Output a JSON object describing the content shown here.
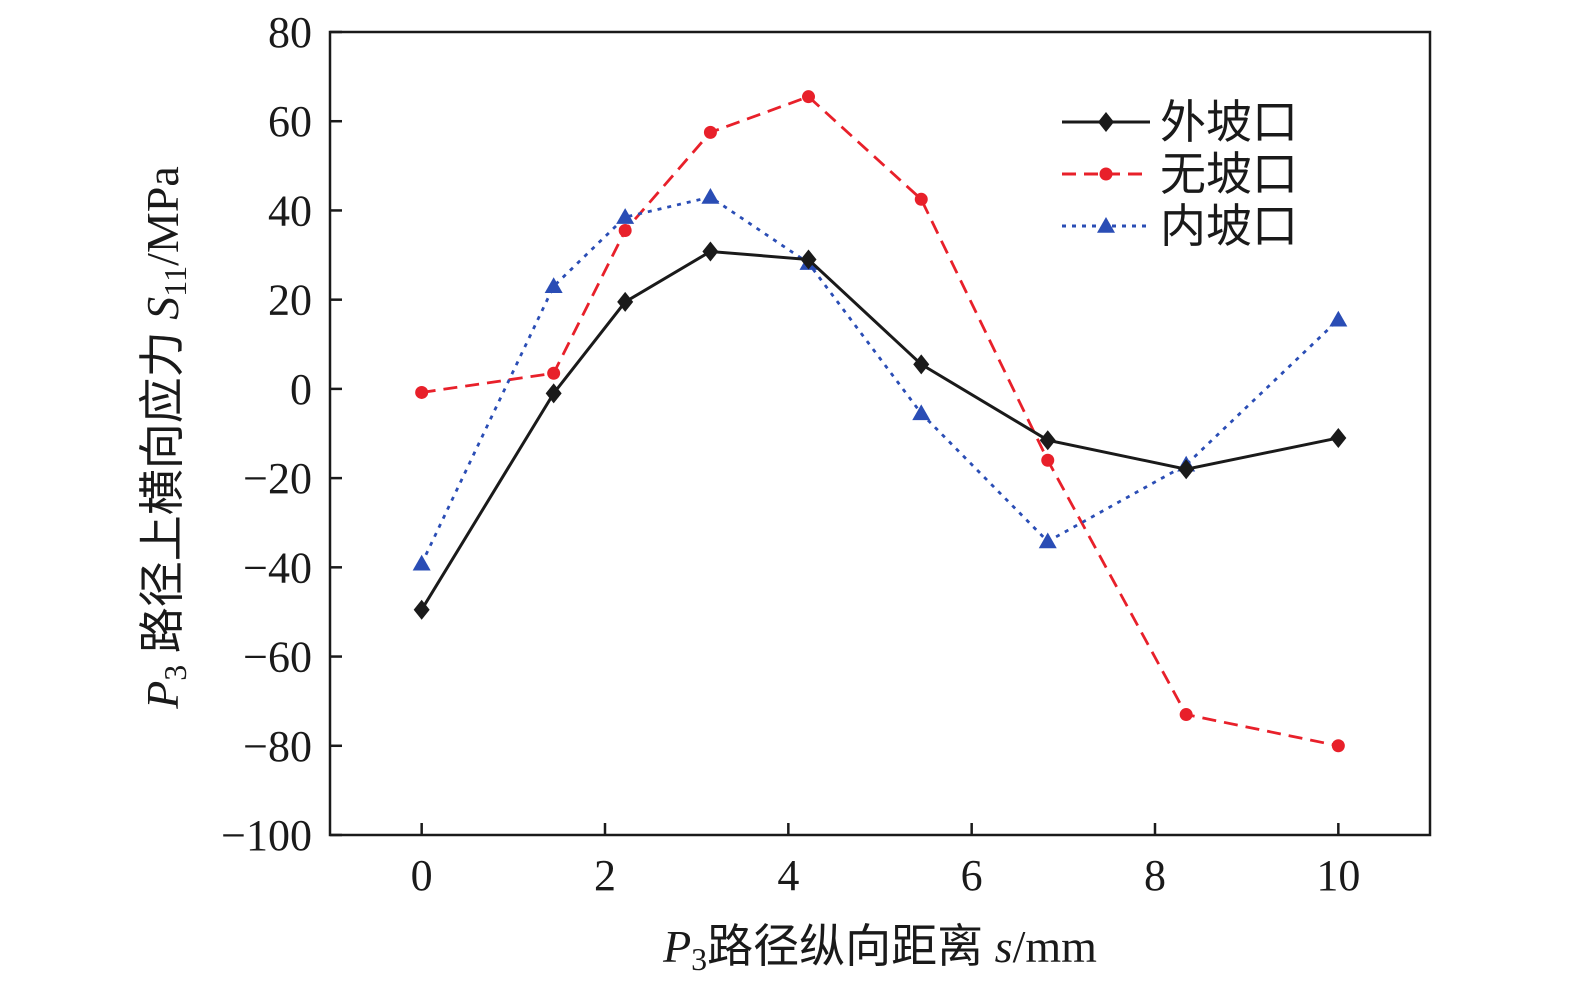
{
  "chart_data": {
    "type": "line",
    "xlabel": {
      "var": "P",
      "sub": "3",
      "text": "路径纵向距离 ",
      "symbol": "s",
      "unit": "/mm"
    },
    "ylabel": {
      "var": "P",
      "sub": "3",
      "text": " 路径上横向应力 ",
      "symbol": "S",
      "symbol_sub": "11",
      "unit": "/MPa"
    },
    "xlim": [
      -1,
      11
    ],
    "ylim": [
      -100,
      80
    ],
    "xticks": [
      0,
      2,
      4,
      6,
      8,
      10
    ],
    "yticks": [
      80,
      60,
      40,
      20,
      0,
      -20,
      -40,
      -60,
      -80,
      -100
    ],
    "ytick_labels": [
      "80",
      "60",
      "40",
      "20",
      "0",
      "−20",
      "−40",
      "−60",
      "−80",
      "−100"
    ],
    "x": [
      0,
      1.44,
      2.22,
      3.15,
      4.22,
      5.45,
      6.83,
      8.34,
      10
    ],
    "legend_position": "top-right",
    "series": [
      {
        "name": "外坡口",
        "color": "#1a1a1a",
        "marker": "diamond",
        "dash": "solid",
        "values": [
          -49.5,
          -1,
          19.5,
          30.8,
          29,
          5.5,
          -11.5,
          -18,
          -11
        ]
      },
      {
        "name": "无坡口",
        "color": "#e8202a",
        "marker": "circle",
        "dash": "dashed",
        "values": [
          -0.8,
          3.5,
          35.5,
          57.5,
          65.5,
          42.5,
          -16,
          -73,
          -80
        ]
      },
      {
        "name": "内坡口",
        "color": "#2a4db5",
        "marker": "triangle",
        "dash": "dotted",
        "values": [
          -39.2,
          23,
          38.5,
          43,
          28.2,
          -5.5,
          -34.2,
          -17,
          15.5
        ]
      }
    ]
  }
}
